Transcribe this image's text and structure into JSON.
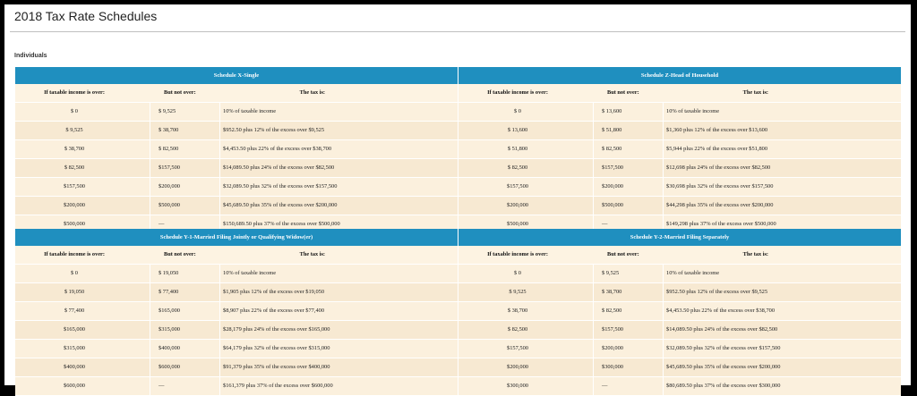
{
  "page": {
    "title": "2018 Tax Rate Schedules",
    "section": "Individuals"
  },
  "columns": {
    "over": "If taxable income is over:",
    "not_over": "But not over:",
    "tax": "The tax is:"
  },
  "schedules": [
    {
      "name": "Schedule X-Single",
      "rows": [
        [
          "$        0",
          "$  9,525",
          "10% of taxable income"
        ],
        [
          "$   9,525",
          "$  38,700",
          "$952.50 plus 12% of the excess over $9,525"
        ],
        [
          "$  38,700",
          "$  82,500",
          "$4,453.50 plus 22% of the excess over $38,700"
        ],
        [
          "$  82,500",
          "$157,500",
          "$14,089.50 plus 24% of the excess over $82,500"
        ],
        [
          "$157,500",
          "$200,000",
          "$32,089.50 plus 32% of the excess over $157,500"
        ],
        [
          "$200,000",
          "$500,000",
          "$45,689.50 plus 35% of the excess over $200,000"
        ],
        [
          "$500,000",
          "—",
          "$150,689.50 plus 37% of the excess over $500,000"
        ]
      ]
    },
    {
      "name": "Schedule Z-Head of Household",
      "rows": [
        [
          "$        0",
          "$  13,600",
          "10% of taxable income"
        ],
        [
          "$  13,600",
          "$  51,800",
          "$1,360 plus 12% of the excess over $13,600"
        ],
        [
          "$  51,800",
          "$  82,500",
          "$5,944 plus 22% of the excess over $51,800"
        ],
        [
          "$  82,500",
          "$157,500",
          "$12,698 plus 24% of the excess over $82,500"
        ],
        [
          "$157,500",
          "$200,000",
          "$30,698 plus 32% of the excess over $157,500"
        ],
        [
          "$200,000",
          "$500,000",
          "$44,298 plus 35% of the excess over $200,000"
        ],
        [
          "$500,000",
          "—",
          "$149,298 plus 37% of the excess over $500,000"
        ]
      ]
    },
    {
      "name": "Schedule Y-1-Married Filing Jointly or Qualifying Widow(er)",
      "rows": [
        [
          "$        0",
          "$  19,050",
          "10% of taxable income"
        ],
        [
          "$  19,050",
          "$  77,400",
          "$1,905 plus 12% of the excess over $19,050"
        ],
        [
          "$  77,400",
          "$165,000",
          "$8,907 plus 22% of the excess over $77,400"
        ],
        [
          "$165,000",
          "$315,000",
          "$28,179 plus 24% of the excess over $165,000"
        ],
        [
          "$315,000",
          "$400,000",
          "$64,179 plus 32% of the excess over $315,000"
        ],
        [
          "$400,000",
          "$600,000",
          "$91,379 plus 35% of the excess over $400,000"
        ],
        [
          "$600,000",
          "—",
          "$161,379 plus 37% of the excess over $600,000"
        ]
      ]
    },
    {
      "name": "Schedule Y-2-Married Filing Separately",
      "rows": [
        [
          "$        0",
          "$  9,525",
          "10% of taxable income"
        ],
        [
          "$   9,525",
          "$  38,700",
          "$952.50 plus 12% of the excess over $9,525"
        ],
        [
          "$  38,700",
          "$  82,500",
          "$4,453.50 plus 22% of the excess over $38,700"
        ],
        [
          "$  82,500",
          "$157,500",
          "$14,089.50 plus 24% of the excess over $82,500"
        ],
        [
          "$157,500",
          "$200,000",
          "$32,089.50 plus 32% of the excess over $157,500"
        ],
        [
          "$200,000",
          "$300,000",
          "$45,689.50 plus 35% of the excess over $200,000"
        ],
        [
          "$300,000",
          "—",
          "$80,689.50 plus 37% of the excess over $300,000"
        ]
      ]
    }
  ],
  "colors": {
    "header_blue": "#1f8fbf",
    "row_bg": "#fbf0dd",
    "row_alt_bg": "#f7e9d2",
    "page_bg": "#000000"
  }
}
